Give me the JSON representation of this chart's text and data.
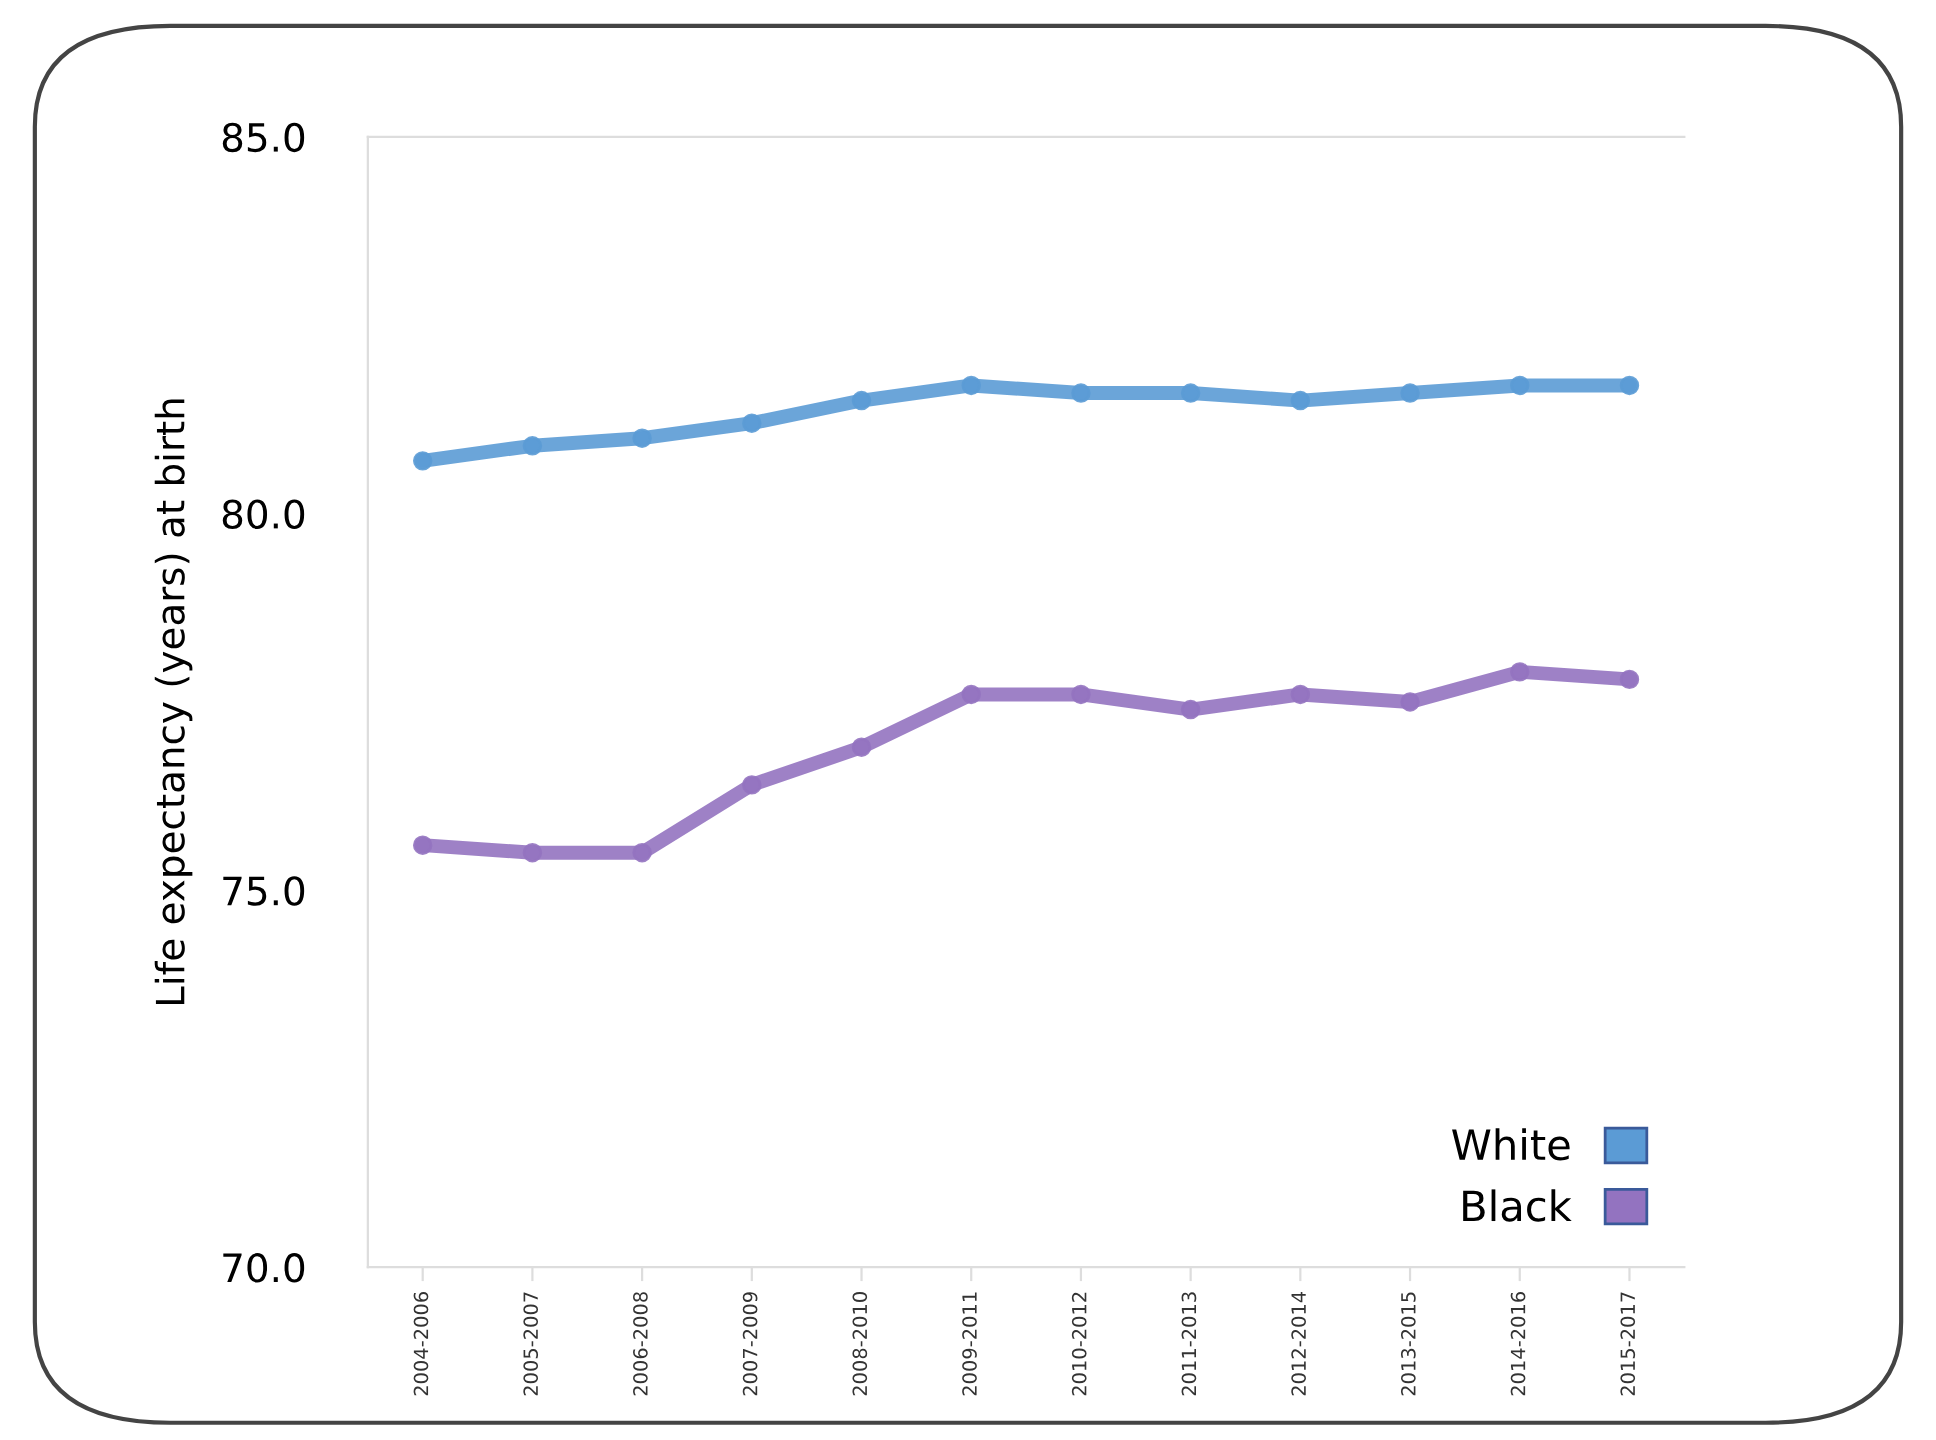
{
  "chart_data": {
    "type": "line",
    "ylabel": "Life expectancy (years) at birth",
    "categories": [
      "2004-2006",
      "2005-2007",
      "2006-2008",
      "2007-2009",
      "2008-2010",
      "2009-2011",
      "2010-2012",
      "2011-2013",
      "2012-2014",
      "2013-2015",
      "2014-2016",
      "2015-2017"
    ],
    "series": [
      {
        "name": "White",
        "color": "#5b9bd5",
        "values": [
          80.7,
          80.9,
          81.0,
          81.2,
          81.5,
          81.7,
          81.6,
          81.6,
          81.5,
          81.6,
          81.7,
          81.7
        ]
      },
      {
        "name": "Black",
        "color": "#9373c0",
        "values": [
          75.6,
          75.5,
          75.5,
          76.4,
          76.9,
          77.6,
          77.6,
          77.4,
          77.6,
          77.5,
          77.9,
          77.8
        ]
      }
    ],
    "ylim": [
      70,
      85
    ],
    "yticks": [
      {
        "value": 70,
        "label": "70.0"
      },
      {
        "value": 75,
        "label": "75.0"
      },
      {
        "value": 80,
        "label": "80.0"
      },
      {
        "value": 85,
        "label": "85.0"
      }
    ],
    "legend": "bottom right",
    "marker": "circle",
    "line_style": "solid",
    "grid": false
  }
}
